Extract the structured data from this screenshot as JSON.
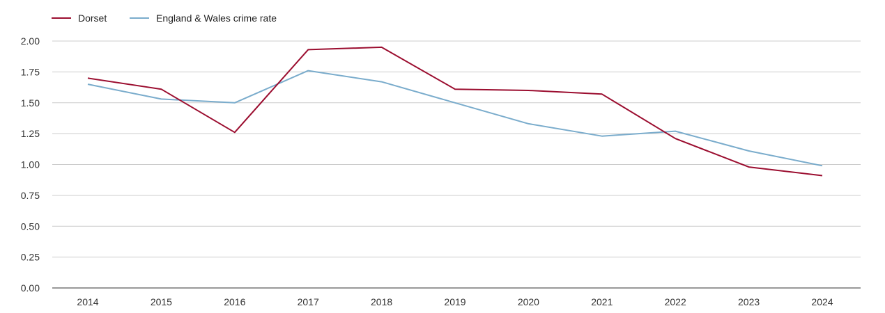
{
  "chart_data": {
    "type": "line",
    "categories": [
      "2014",
      "2015",
      "2016",
      "2017",
      "2018",
      "2019",
      "2020",
      "2021",
      "2022",
      "2023",
      "2024"
    ],
    "series": [
      {
        "name": "Dorset",
        "color": "#9b0d2f",
        "values": [
          1.7,
          1.61,
          1.26,
          1.93,
          1.95,
          1.61,
          1.6,
          1.57,
          1.21,
          0.98,
          0.91
        ]
      },
      {
        "name": "England & Wales crime rate",
        "color": "#7aaccc",
        "values": [
          1.65,
          1.53,
          1.5,
          1.76,
          1.67,
          1.5,
          1.33,
          1.23,
          1.27,
          1.11,
          0.99
        ]
      }
    ],
    "yticks": [
      "0.00",
      "0.25",
      "0.50",
      "0.75",
      "1.00",
      "1.25",
      "1.50",
      "1.75",
      "2.00"
    ],
    "ylim": [
      0,
      2.0
    ],
    "grid": true,
    "legend": "top-left"
  }
}
